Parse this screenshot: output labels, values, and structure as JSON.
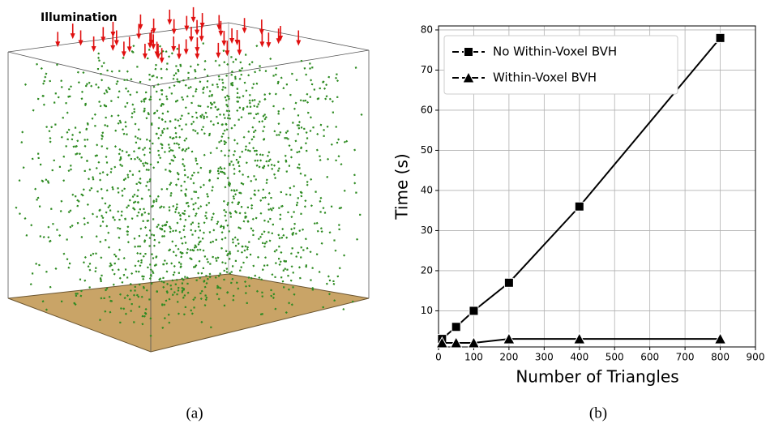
{
  "panel_a": {
    "label": "Illumination",
    "caption": "(a)"
  },
  "panel_b": {
    "caption": "(b)"
  },
  "chart_data": {
    "type": "line",
    "x_label": "Number of Triangles",
    "y_label": "Time (s)",
    "x": [
      10,
      50,
      100,
      200,
      400,
      800
    ],
    "series": [
      {
        "name": "No Within-Voxel BVH",
        "color": "#000000",
        "marker": "square",
        "values": [
          3,
          6,
          10,
          17,
          36,
          78
        ]
      },
      {
        "name": "Within-Voxel BVH",
        "color": "#000000",
        "marker": "triangle",
        "values": [
          2,
          2,
          2,
          3,
          3,
          3
        ]
      }
    ],
    "xlim": [
      0,
      900
    ],
    "xticks": [
      0,
      100,
      200,
      300,
      400,
      500,
      600,
      700,
      800,
      900
    ],
    "ylim": [
      1,
      81
    ],
    "yticks": [
      10,
      20,
      30,
      40,
      50,
      60,
      70,
      80
    ],
    "grid": true,
    "legend": "upper-left"
  }
}
